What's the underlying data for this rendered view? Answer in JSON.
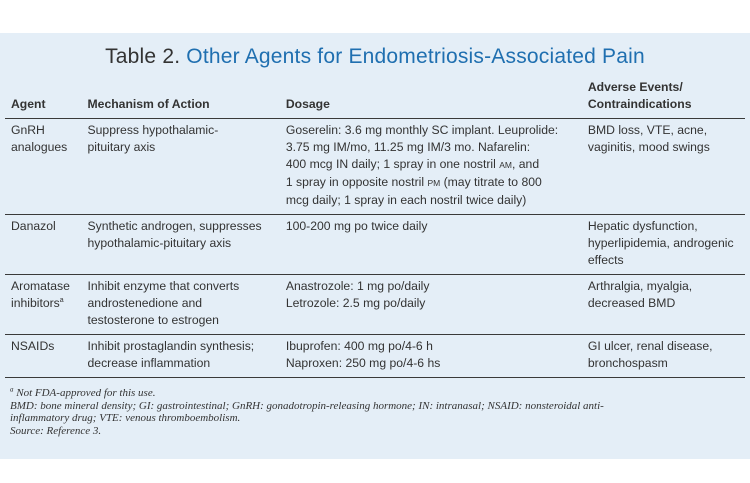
{
  "title": {
    "prefix": "Table 2.",
    "text": "Other Agents for Endometriosis-Associated Pain"
  },
  "columns": {
    "agent": "Agent",
    "mechanism": "Mechanism of Action",
    "dosage": "Dosage",
    "adverse_line1": "Adverse Events/",
    "adverse_line2": "Contraindications"
  },
  "rows": [
    {
      "agent": [
        "GnRH",
        "analogues"
      ],
      "mechanism": [
        "Suppress hypothalamic-",
        "pituitary axis"
      ],
      "dosage": {
        "l1": "Goserelin: 3.6 mg monthly SC implant. Leuprolide:",
        "l2": "3.75 mg IM/mo, 11.25 mg IM/3 mo. Nafarelin:",
        "l3a": "400 mcg IN daily; 1 spray in one nostril",
        "l3b": "AM",
        "l3c": ", and",
        "l4a": "1 spray in opposite nostril",
        "l4b": "PM",
        "l4c": " (may titrate to 800",
        "l5": "mcg daily; 1 spray in each nostril twice daily)"
      },
      "adverse": [
        "BMD loss, VTE, acne,",
        "vaginitis, mood swings"
      ]
    },
    {
      "agent": [
        "Danazol"
      ],
      "mechanism": [
        "Synthetic androgen, suppresses",
        "hypothalamic-pituitary axis"
      ],
      "dosage": [
        "100-200 mg po twice daily"
      ],
      "adverse": [
        "Hepatic dysfunction,",
        "hyperlipidemia, androgenic",
        "effects"
      ]
    },
    {
      "agent": [
        "Aromatase",
        "inhibitors",
        "a"
      ],
      "mechanism": [
        "Inhibit enzyme that converts",
        "androstenedione and",
        "testosterone to estrogen"
      ],
      "dosage": [
        "Anastrozole: 1 mg po/daily",
        "Letrozole: 2.5 mg po/daily"
      ],
      "adverse": [
        "Arthralgia, myalgia,",
        "decreased BMD"
      ]
    },
    {
      "agent": [
        "NSAIDs"
      ],
      "mechanism": [
        "Inhibit prostaglandin synthesis;",
        "decrease inflammation"
      ],
      "dosage": [
        "Ibuprofen: 400 mg po/4-6 h",
        "Naproxen: 250 mg po/4-6 hs"
      ],
      "adverse": [
        "GI ulcer, renal disease,",
        "bronchospasm"
      ]
    }
  ],
  "footnotes": {
    "a_mark": "a",
    "a_text": " Not FDA-approved for this use.",
    "abbr1": "BMD: bone mineral density; GI: gastrointestinal; GnRH: gonadotropin-releasing hormone; IN: intranasal; NSAID: nonsteroidal anti-",
    "abbr2": "inflammatory drug; VTE: venous thromboembolism.",
    "source": "Source: Reference 3."
  },
  "colors": {
    "panel": "#e4eef7",
    "title_accent": "#1f6fb0"
  }
}
